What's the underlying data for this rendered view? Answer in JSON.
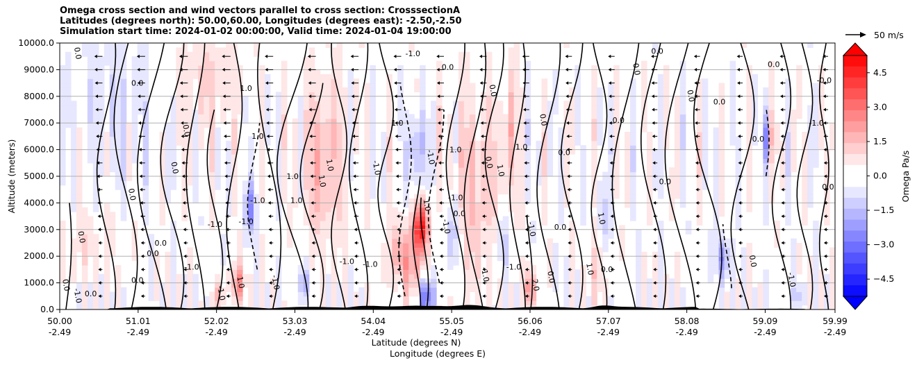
{
  "titles": {
    "line1": "Omega cross section and wind vectors parallel to cross section: CrosssectionA",
    "line2": "Latitudes (degrees north): 50.00,60.00, Longitudes (degrees east): -2.50,-2.50",
    "line3": "Simulation start time: 2024-01-02 00:00:00, Valid time: 2024-01-04 19:00:00"
  },
  "colors": {
    "positive": "#ff0000",
    "negative": "#0000ff",
    "neutral": "#ffffff",
    "terrain": "#000000",
    "grid": "#b0b0b0"
  },
  "chart_data": {
    "type": "heatmap",
    "title": "Omega cross section and wind vectors parallel to cross section: CrosssectionA",
    "ylabel": "Altitude (meters)",
    "xlabel_line1": "Latitude (degrees N)",
    "xlabel_line2": "Longitude (degrees E)",
    "ylim": [
      0,
      10000
    ],
    "y_ticks": [
      "0.0",
      "1000.0",
      "2000.0",
      "3000.0",
      "4000.0",
      "5000.0",
      "6000.0",
      "7000.0",
      "8000.0",
      "9000.0",
      "10000.0"
    ],
    "y_tick_values": [
      0,
      1000,
      2000,
      3000,
      4000,
      5000,
      6000,
      7000,
      8000,
      9000,
      10000
    ],
    "xlim": [
      50.0,
      59.99
    ],
    "x_tick_values": [
      50.0,
      51.01,
      52.02,
      53.03,
      54.04,
      55.05,
      56.06,
      57.07,
      58.08,
      59.09,
      59.99
    ],
    "x_tick_lat": [
      "50.00",
      "51.01",
      "52.02",
      "53.03",
      "54.04",
      "55.05",
      "56.06",
      "57.07",
      "58.08",
      "59.09",
      "59.99"
    ],
    "x_tick_lon": [
      "-2.49",
      "-2.49",
      "-2.49",
      "-2.49",
      "-2.49",
      "-2.49",
      "-2.49",
      "-2.49",
      "-2.49",
      "-2.49",
      "-2.49"
    ],
    "grid": "horizontal",
    "colorbar": {
      "label": "Omega Pa/s",
      "ticks": [
        "4.5",
        "3.0",
        "1.5",
        "0.0",
        "−1.5",
        "−3.0",
        "−4.5"
      ],
      "tick_values": [
        4.5,
        3.0,
        1.5,
        0.0,
        -1.5,
        -3.0,
        -4.5
      ],
      "range": [
        -5.25,
        5.25
      ],
      "levels": 22,
      "extend": "both",
      "orientation": "vertical"
    },
    "quiver_key": {
      "label": "50 m/s",
      "speed": 50
    },
    "contour_interval": 1.0,
    "contour_labels": [
      {
        "lat": 50.2,
        "alt": 9600,
        "text": "0.0"
      },
      {
        "lat": 50.25,
        "alt": 2700,
        "text": "0.0"
      },
      {
        "lat": 50.05,
        "alt": 900,
        "text": "0.0"
      },
      {
        "lat": 50.2,
        "alt": 500,
        "text": "-1.0"
      },
      {
        "lat": 50.4,
        "alt": 500,
        "text": "0.0"
      },
      {
        "lat": 50.9,
        "alt": 4300,
        "text": "0.0"
      },
      {
        "lat": 51.0,
        "alt": 8400,
        "text": "0.0"
      },
      {
        "lat": 51.0,
        "alt": 1000,
        "text": "0.0"
      },
      {
        "lat": 51.2,
        "alt": 2000,
        "text": "0.0"
      },
      {
        "lat": 51.3,
        "alt": 2400,
        "text": "0.0"
      },
      {
        "lat": 51.6,
        "alt": 6700,
        "text": "0.0"
      },
      {
        "lat": 51.45,
        "alt": 5300,
        "text": "0.0"
      },
      {
        "lat": 52.0,
        "alt": 3100,
        "text": "-1.0"
      },
      {
        "lat": 51.7,
        "alt": 1500,
        "text": "-1.0"
      },
      {
        "lat": 52.05,
        "alt": 600,
        "text": "-1.0"
      },
      {
        "lat": 52.4,
        "alt": 8200,
        "text": "1.0"
      },
      {
        "lat": 52.4,
        "alt": 3200,
        "text": "-1.0"
      },
      {
        "lat": 52.3,
        "alt": 1000,
        "text": "1.0"
      },
      {
        "lat": 52.55,
        "alt": 6400,
        "text": "1.0"
      },
      {
        "lat": 52.55,
        "alt": 4000,
        "text": "-1.0"
      },
      {
        "lat": 52.75,
        "alt": 1000,
        "text": "-1.0"
      },
      {
        "lat": 53.0,
        "alt": 4900,
        "text": "1.0"
      },
      {
        "lat": 53.05,
        "alt": 4000,
        "text": "1.0"
      },
      {
        "lat": 53.35,
        "alt": 4800,
        "text": "1.0"
      },
      {
        "lat": 53.45,
        "alt": 5400,
        "text": "1.0"
      },
      {
        "lat": 53.7,
        "alt": 1700,
        "text": "-1.0"
      },
      {
        "lat": 54.0,
        "alt": 1600,
        "text": "-1.0"
      },
      {
        "lat": 54.05,
        "alt": 5300,
        "text": "-1.0"
      },
      {
        "lat": 54.35,
        "alt": 6900,
        "text": "1.0"
      },
      {
        "lat": 54.55,
        "alt": 9500,
        "text": "-1.0"
      },
      {
        "lat": 54.7,
        "alt": 3900,
        "text": "1.0"
      },
      {
        "lat": 54.75,
        "alt": 5700,
        "text": "-1.0"
      },
      {
        "lat": 54.95,
        "alt": 3100,
        "text": "-1.0"
      },
      {
        "lat": 55.0,
        "alt": 9000,
        "text": "0.0"
      },
      {
        "lat": 55.1,
        "alt": 4100,
        "text": "-1.0"
      },
      {
        "lat": 55.1,
        "alt": 5900,
        "text": "1.0"
      },
      {
        "lat": 55.15,
        "alt": 3500,
        "text": "0.0"
      },
      {
        "lat": 55.5,
        "alt": 5500,
        "text": "0.0"
      },
      {
        "lat": 55.45,
        "alt": 1300,
        "text": "-1.0"
      },
      {
        "lat": 55.55,
        "alt": 8200,
        "text": "0.0"
      },
      {
        "lat": 55.65,
        "alt": 5200,
        "text": "1.0"
      },
      {
        "lat": 55.95,
        "alt": 6000,
        "text": "1.0"
      },
      {
        "lat": 56.05,
        "alt": 3000,
        "text": "-1.0"
      },
      {
        "lat": 55.85,
        "alt": 1500,
        "text": "-1.0"
      },
      {
        "lat": 56.1,
        "alt": 900,
        "text": "2.0"
      },
      {
        "lat": 56.2,
        "alt": 7100,
        "text": "0.0"
      },
      {
        "lat": 56.3,
        "alt": 1200,
        "text": "0.0"
      },
      {
        "lat": 56.45,
        "alt": 3000,
        "text": "0.0"
      },
      {
        "lat": 56.5,
        "alt": 5800,
        "text": "0.0"
      },
      {
        "lat": 56.8,
        "alt": 1500,
        "text": "1.0"
      },
      {
        "lat": 56.95,
        "alt": 3400,
        "text": "1.0"
      },
      {
        "lat": 57.05,
        "alt": 1400,
        "text": "0.0"
      },
      {
        "lat": 57.2,
        "alt": 7000,
        "text": "0.0"
      },
      {
        "lat": 57.4,
        "alt": 9000,
        "text": "0.0"
      },
      {
        "lat": 57.7,
        "alt": 9600,
        "text": "0.0"
      },
      {
        "lat": 57.8,
        "alt": 4700,
        "text": "0.0"
      },
      {
        "lat": 58.1,
        "alt": 8000,
        "text": "0.0"
      },
      {
        "lat": 58.5,
        "alt": 7700,
        "text": "0.0"
      },
      {
        "lat": 58.9,
        "alt": 1800,
        "text": "0.0"
      },
      {
        "lat": 59.0,
        "alt": 6300,
        "text": "0.0"
      },
      {
        "lat": 59.2,
        "alt": 9100,
        "text": "0.0"
      },
      {
        "lat": 59.4,
        "alt": 1100,
        "text": "-1.0"
      },
      {
        "lat": 59.75,
        "alt": 6900,
        "text": "-1.0"
      },
      {
        "lat": 59.85,
        "alt": 8500,
        "text": "-0.0"
      },
      {
        "lat": 59.9,
        "alt": 4500,
        "text": "0.0"
      }
    ]
  }
}
